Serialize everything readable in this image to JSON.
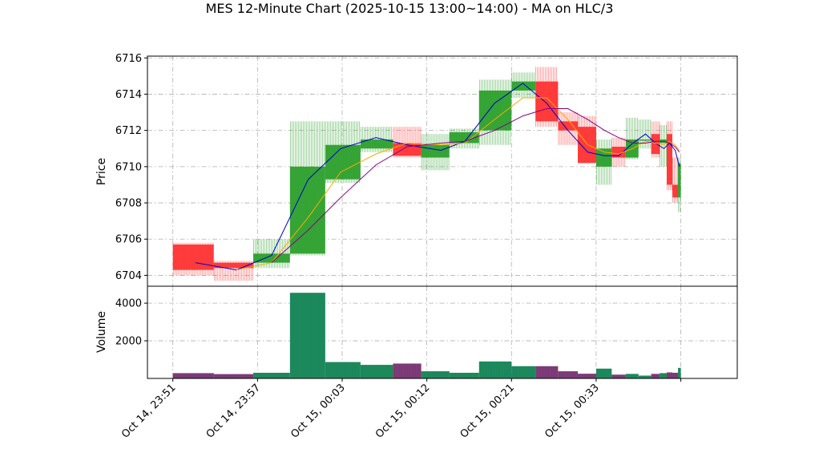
{
  "chart_data": {
    "type": "candlestick",
    "title": "MES 12-Minute Chart (2025-10-15 13:00~14:00) - MA on HLC/3",
    "price_panel": {
      "ylabel": "Price",
      "ylim": [
        6703.4,
        6716.1
      ],
      "yticks": [
        6704,
        6706,
        6708,
        6710,
        6712,
        6714,
        6716
      ]
    },
    "volume_panel": {
      "ylabel": "Volume",
      "ylim": [
        0,
        4900
      ],
      "yticks": [
        2000,
        4000
      ]
    },
    "x_axis": {
      "range_minutes": [
        -1.8,
        40
      ],
      "ticks": [
        {
          "minute": 0,
          "label": "Oct 14, 23:51"
        },
        {
          "minute": 6,
          "label": "Oct 14, 23:57"
        },
        {
          "minute": 12,
          "label": "Oct 15, 00:03"
        },
        {
          "minute": 18,
          "label": "Oct 15, 00:12"
        },
        {
          "minute": 24,
          "label": "Oct 15, 00:21"
        },
        {
          "minute": 30,
          "label": "Oct 15, 00:33"
        },
        {
          "minute": 36,
          "label": ""
        }
      ]
    },
    "colors": {
      "up": "#2ca02c",
      "down": "#ff3333",
      "volume_up": "#1a8a4a",
      "volume_down": "#8a2f6a",
      "ma_short": "#0000cc",
      "ma_mid": "#ffaa00",
      "ma_long": "#880088",
      "grid": "#b0b0b0"
    },
    "candles": [
      {
        "x0": 0.0,
        "x1": 2.9,
        "open": 6705.7,
        "high": 6705.8,
        "low": 6704.0,
        "close": 6704.3,
        "volume": 280
      },
      {
        "x0": 2.9,
        "x1": 5.7,
        "open": 6704.7,
        "high": 6704.8,
        "low": 6703.7,
        "close": 6704.4,
        "volume": 230
      },
      {
        "x0": 5.7,
        "x1": 8.3,
        "open": 6704.7,
        "high": 6706.0,
        "low": 6704.4,
        "close": 6705.2,
        "volume": 300
      },
      {
        "x0": 8.3,
        "x1": 10.8,
        "open": 6705.2,
        "high": 6712.5,
        "low": 6705.1,
        "close": 6710.0,
        "volume": 4550
      },
      {
        "x0": 10.8,
        "x1": 13.3,
        "open": 6709.3,
        "high": 6712.5,
        "low": 6709.1,
        "close": 6711.2,
        "volume": 870
      },
      {
        "x0": 13.3,
        "x1": 15.6,
        "open": 6711.0,
        "high": 6712.2,
        "low": 6710.8,
        "close": 6711.5,
        "volume": 720
      },
      {
        "x0": 15.6,
        "x1": 17.6,
        "open": 6711.3,
        "high": 6712.2,
        "low": 6710.5,
        "close": 6710.6,
        "volume": 790
      },
      {
        "x0": 17.6,
        "x1": 19.6,
        "open": 6710.5,
        "high": 6711.8,
        "low": 6709.8,
        "close": 6711.2,
        "volume": 380
      },
      {
        "x0": 19.6,
        "x1": 21.7,
        "open": 6711.3,
        "high": 6712.1,
        "low": 6711.0,
        "close": 6711.9,
        "volume": 300
      },
      {
        "x0": 21.7,
        "x1": 24.0,
        "open": 6712.0,
        "high": 6714.8,
        "low": 6711.2,
        "close": 6714.2,
        "volume": 900
      },
      {
        "x0": 24.0,
        "x1": 25.7,
        "open": 6714.2,
        "high": 6715.2,
        "low": 6713.8,
        "close": 6714.7,
        "volume": 650
      },
      {
        "x0": 25.7,
        "x1": 27.3,
        "open": 6714.7,
        "high": 6715.5,
        "low": 6712.2,
        "close": 6712.5,
        "volume": 650
      },
      {
        "x0": 27.3,
        "x1": 28.7,
        "open": 6712.5,
        "high": 6713.0,
        "low": 6711.2,
        "close": 6712.0,
        "volume": 380
      },
      {
        "x0": 28.7,
        "x1": 30.0,
        "open": 6712.2,
        "high": 6712.8,
        "low": 6710.2,
        "close": 6710.2,
        "volume": 250
      },
      {
        "x0": 30.0,
        "x1": 31.1,
        "open": 6710.0,
        "high": 6711.5,
        "low": 6709.0,
        "close": 6711.0,
        "volume": 520
      },
      {
        "x0": 31.1,
        "x1": 32.1,
        "open": 6711.1,
        "high": 6711.6,
        "low": 6710.0,
        "close": 6710.5,
        "volume": 200
      },
      {
        "x0": 32.1,
        "x1": 33.0,
        "open": 6710.5,
        "high": 6712.7,
        "low": 6710.4,
        "close": 6711.5,
        "volume": 240
      },
      {
        "x0": 33.0,
        "x1": 33.9,
        "open": 6711.5,
        "high": 6712.6,
        "low": 6711.0,
        "close": 6711.5,
        "volume": 150
      },
      {
        "x0": 33.9,
        "x1": 34.5,
        "open": 6711.8,
        "high": 6712.5,
        "low": 6710.5,
        "close": 6710.7,
        "volume": 240
      },
      {
        "x0": 34.5,
        "x1": 35.0,
        "open": 6711.3,
        "high": 6712.3,
        "low": 6710.0,
        "close": 6711.5,
        "volume": 280
      },
      {
        "x0": 35.0,
        "x1": 35.4,
        "open": 6711.8,
        "high": 6712.5,
        "low": 6708.7,
        "close": 6709.0,
        "volume": 320
      },
      {
        "x0": 35.4,
        "x1": 35.8,
        "open": 6709.0,
        "high": 6710.5,
        "low": 6708.0,
        "close": 6708.3,
        "volume": 300
      },
      {
        "x0": 35.8,
        "x1": 36.0,
        "open": 6708.3,
        "high": 6710.5,
        "low": 6707.5,
        "close": 6710.2,
        "volume": 560
      }
    ],
    "moving_averages": [
      {
        "color_key": "ma_short",
        "points": [
          [
            1.6,
            6704.7
          ],
          [
            4.5,
            6704.3
          ],
          [
            7.0,
            6705.1
          ],
          [
            9.6,
            6709.3
          ],
          [
            11.9,
            6711.0
          ],
          [
            14.4,
            6711.6
          ],
          [
            16.6,
            6711.2
          ],
          [
            19.0,
            6710.9
          ],
          [
            20.7,
            6711.4
          ],
          [
            22.8,
            6713.5
          ],
          [
            24.8,
            6714.6
          ],
          [
            26.5,
            6713.5
          ],
          [
            28.0,
            6712.0
          ],
          [
            29.4,
            6710.8
          ],
          [
            30.6,
            6710.6
          ],
          [
            31.6,
            6710.6
          ],
          [
            32.6,
            6711.3
          ],
          [
            33.5,
            6711.8
          ],
          [
            34.2,
            6711.3
          ],
          [
            34.8,
            6711.0
          ],
          [
            35.2,
            6711.3
          ],
          [
            35.6,
            6710.9
          ],
          [
            35.9,
            6710.0
          ]
        ]
      },
      {
        "color_key": "ma_mid",
        "points": [
          [
            4.5,
            6704.3
          ],
          [
            7.0,
            6704.7
          ],
          [
            9.6,
            6707.2
          ],
          [
            11.9,
            6709.7
          ],
          [
            14.4,
            6710.7
          ],
          [
            16.6,
            6711.3
          ],
          [
            19.0,
            6711.2
          ],
          [
            20.7,
            6711.3
          ],
          [
            22.8,
            6712.6
          ],
          [
            24.8,
            6713.8
          ],
          [
            26.5,
            6713.8
          ],
          [
            28.0,
            6712.6
          ],
          [
            29.4,
            6711.2
          ],
          [
            30.6,
            6710.8
          ],
          [
            31.6,
            6710.7
          ],
          [
            32.6,
            6711.0
          ],
          [
            33.5,
            6711.4
          ],
          [
            34.2,
            6711.3
          ],
          [
            34.8,
            6711.2
          ],
          [
            35.2,
            6711.4
          ],
          [
            35.6,
            6711.2
          ],
          [
            35.9,
            6710.9
          ]
        ]
      },
      {
        "color_key": "ma_long",
        "points": [
          [
            7.0,
            6704.7
          ],
          [
            9.6,
            6706.5
          ],
          [
            11.9,
            6708.3
          ],
          [
            14.4,
            6710.1
          ],
          [
            16.6,
            6711.1
          ],
          [
            19.0,
            6711.3
          ],
          [
            20.7,
            6711.4
          ],
          [
            22.8,
            6712.0
          ],
          [
            24.8,
            6712.8
          ],
          [
            26.5,
            6713.2
          ],
          [
            28.0,
            6713.2
          ],
          [
            29.4,
            6712.6
          ],
          [
            30.6,
            6712.0
          ],
          [
            31.6,
            6711.6
          ],
          [
            32.6,
            6711.3
          ],
          [
            33.5,
            6711.3
          ],
          [
            34.2,
            6711.4
          ],
          [
            34.8,
            6711.4
          ],
          [
            35.2,
            6711.3
          ],
          [
            35.6,
            6711.1
          ],
          [
            35.9,
            6710.8
          ]
        ]
      }
    ]
  }
}
